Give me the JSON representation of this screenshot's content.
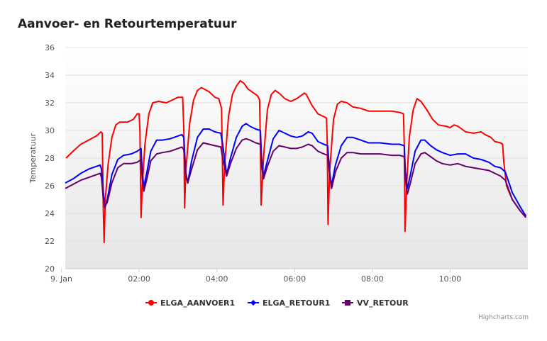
{
  "chart_data": {
    "type": "line",
    "title": "Aanvoer- en Retourtemperatuur",
    "ylabel": "Temperatuur",
    "xlabel": "",
    "ylim": [
      20,
      36
    ],
    "yticks": [
      20,
      22,
      24,
      26,
      28,
      30,
      32,
      34,
      36
    ],
    "xlim": [
      0.1,
      12.0
    ],
    "xticks": [
      {
        "value": 0,
        "label": "9. Jan"
      },
      {
        "value": 2,
        "label": "02:00"
      },
      {
        "value": 4,
        "label": "04:00"
      },
      {
        "value": 6,
        "label": "06:00"
      },
      {
        "value": 8,
        "label": "08:00"
      },
      {
        "value": 10,
        "label": "10:00"
      }
    ],
    "grid": true,
    "legend_position": "bottom-center",
    "series": [
      {
        "name": "ELGA_AANVOER1",
        "color": "#ff0000",
        "points": [
          [
            0.12,
            28.0
          ],
          [
            0.3,
            28.5
          ],
          [
            0.5,
            29.0
          ],
          [
            0.7,
            29.3
          ],
          [
            0.9,
            29.6
          ],
          [
            1.02,
            29.9
          ],
          [
            1.05,
            29.8
          ],
          [
            1.08,
            24.0
          ],
          [
            1.1,
            21.9
          ],
          [
            1.13,
            25.0
          ],
          [
            1.2,
            27.5
          ],
          [
            1.3,
            29.5
          ],
          [
            1.4,
            30.4
          ],
          [
            1.5,
            30.6
          ],
          [
            1.7,
            30.6
          ],
          [
            1.85,
            30.8
          ],
          [
            1.95,
            31.2
          ],
          [
            2.0,
            31.2
          ],
          [
            2.02,
            30.0
          ],
          [
            2.05,
            23.7
          ],
          [
            2.08,
            26.0
          ],
          [
            2.15,
            29.0
          ],
          [
            2.25,
            31.2
          ],
          [
            2.35,
            32.0
          ],
          [
            2.5,
            32.1
          ],
          [
            2.7,
            32.0
          ],
          [
            2.85,
            32.2
          ],
          [
            3.0,
            32.4
          ],
          [
            3.12,
            32.4
          ],
          [
            3.15,
            30.0
          ],
          [
            3.17,
            24.4
          ],
          [
            3.2,
            27.0
          ],
          [
            3.3,
            30.5
          ],
          [
            3.4,
            32.2
          ],
          [
            3.5,
            32.9
          ],
          [
            3.6,
            33.1
          ],
          [
            3.8,
            32.8
          ],
          [
            3.95,
            32.4
          ],
          [
            4.05,
            32.3
          ],
          [
            4.12,
            31.6
          ],
          [
            4.14,
            28.0
          ],
          [
            4.16,
            24.6
          ],
          [
            4.2,
            27.5
          ],
          [
            4.3,
            31.0
          ],
          [
            4.4,
            32.6
          ],
          [
            4.5,
            33.2
          ],
          [
            4.6,
            33.6
          ],
          [
            4.7,
            33.4
          ],
          [
            4.8,
            33.0
          ],
          [
            4.95,
            32.7
          ],
          [
            5.05,
            32.5
          ],
          [
            5.1,
            32.2
          ],
          [
            5.12,
            29.0
          ],
          [
            5.14,
            24.6
          ],
          [
            5.2,
            28.0
          ],
          [
            5.3,
            31.5
          ],
          [
            5.4,
            32.6
          ],
          [
            5.5,
            32.9
          ],
          [
            5.6,
            32.7
          ],
          [
            5.75,
            32.3
          ],
          [
            5.9,
            32.1
          ],
          [
            6.05,
            32.3
          ],
          [
            6.15,
            32.5
          ],
          [
            6.25,
            32.7
          ],
          [
            6.3,
            32.6
          ],
          [
            6.45,
            31.8
          ],
          [
            6.6,
            31.2
          ],
          [
            6.75,
            31.0
          ],
          [
            6.82,
            30.9
          ],
          [
            6.84,
            29.0
          ],
          [
            6.86,
            23.2
          ],
          [
            6.9,
            27.0
          ],
          [
            7.0,
            30.8
          ],
          [
            7.1,
            31.9
          ],
          [
            7.2,
            32.1
          ],
          [
            7.35,
            32.0
          ],
          [
            7.5,
            31.7
          ],
          [
            7.7,
            31.6
          ],
          [
            7.9,
            31.4
          ],
          [
            8.2,
            31.4
          ],
          [
            8.5,
            31.4
          ],
          [
            8.7,
            31.3
          ],
          [
            8.8,
            31.2
          ],
          [
            8.82,
            29.0
          ],
          [
            8.84,
            22.7
          ],
          [
            8.88,
            26.0
          ],
          [
            8.95,
            29.5
          ],
          [
            9.05,
            31.5
          ],
          [
            9.15,
            32.3
          ],
          [
            9.25,
            32.1
          ],
          [
            9.4,
            31.5
          ],
          [
            9.55,
            30.8
          ],
          [
            9.7,
            30.4
          ],
          [
            9.9,
            30.3
          ],
          [
            10.0,
            30.2
          ],
          [
            10.1,
            30.4
          ],
          [
            10.2,
            30.3
          ],
          [
            10.4,
            29.9
          ],
          [
            10.6,
            29.8
          ],
          [
            10.8,
            29.9
          ],
          [
            10.9,
            29.7
          ],
          [
            11.05,
            29.5
          ],
          [
            11.15,
            29.2
          ],
          [
            11.3,
            29.1
          ],
          [
            11.35,
            29.0
          ],
          [
            11.38,
            27.8
          ],
          [
            11.45,
            26.0
          ],
          [
            11.6,
            25.0
          ],
          [
            11.8,
            24.2
          ],
          [
            11.95,
            23.7
          ]
        ]
      },
      {
        "name": "ELGA_RETOUR1",
        "color": "#0000ff",
        "points": [
          [
            0.1,
            26.2
          ],
          [
            0.3,
            26.5
          ],
          [
            0.5,
            26.9
          ],
          [
            0.7,
            27.2
          ],
          [
            0.9,
            27.4
          ],
          [
            1.0,
            27.5
          ],
          [
            1.03,
            27.2
          ],
          [
            1.08,
            25.5
          ],
          [
            1.12,
            24.4
          ],
          [
            1.18,
            25.0
          ],
          [
            1.3,
            26.8
          ],
          [
            1.45,
            27.9
          ],
          [
            1.6,
            28.2
          ],
          [
            1.8,
            28.3
          ],
          [
            1.95,
            28.5
          ],
          [
            2.05,
            28.7
          ],
          [
            2.08,
            27.0
          ],
          [
            2.12,
            25.9
          ],
          [
            2.2,
            27.0
          ],
          [
            2.3,
            28.5
          ],
          [
            2.45,
            29.3
          ],
          [
            2.6,
            29.3
          ],
          [
            2.8,
            29.4
          ],
          [
            3.0,
            29.6
          ],
          [
            3.1,
            29.7
          ],
          [
            3.15,
            29.5
          ],
          [
            3.2,
            27.0
          ],
          [
            3.25,
            26.2
          ],
          [
            3.35,
            27.8
          ],
          [
            3.5,
            29.5
          ],
          [
            3.65,
            30.1
          ],
          [
            3.8,
            30.1
          ],
          [
            3.95,
            29.9
          ],
          [
            4.1,
            29.8
          ],
          [
            4.15,
            29.0
          ],
          [
            4.25,
            26.8
          ],
          [
            4.35,
            28.0
          ],
          [
            4.5,
            29.5
          ],
          [
            4.65,
            30.3
          ],
          [
            4.75,
            30.5
          ],
          [
            4.85,
            30.3
          ],
          [
            5.0,
            30.1
          ],
          [
            5.12,
            30.0
          ],
          [
            5.15,
            28.0
          ],
          [
            5.2,
            26.7
          ],
          [
            5.3,
            27.8
          ],
          [
            5.45,
            29.4
          ],
          [
            5.6,
            30.0
          ],
          [
            5.75,
            29.8
          ],
          [
            5.9,
            29.6
          ],
          [
            6.05,
            29.5
          ],
          [
            6.2,
            29.6
          ],
          [
            6.35,
            29.9
          ],
          [
            6.45,
            29.8
          ],
          [
            6.6,
            29.2
          ],
          [
            6.75,
            29.0
          ],
          [
            6.85,
            28.9
          ],
          [
            6.9,
            27.0
          ],
          [
            6.95,
            26.0
          ],
          [
            7.05,
            27.5
          ],
          [
            7.2,
            28.9
          ],
          [
            7.35,
            29.5
          ],
          [
            7.5,
            29.5
          ],
          [
            7.7,
            29.3
          ],
          [
            7.9,
            29.1
          ],
          [
            8.2,
            29.1
          ],
          [
            8.5,
            29.0
          ],
          [
            8.7,
            29.0
          ],
          [
            8.82,
            28.9
          ],
          [
            8.85,
            27.0
          ],
          [
            8.9,
            25.8
          ],
          [
            8.98,
            26.8
          ],
          [
            9.1,
            28.5
          ],
          [
            9.25,
            29.3
          ],
          [
            9.35,
            29.3
          ],
          [
            9.5,
            28.9
          ],
          [
            9.65,
            28.6
          ],
          [
            9.8,
            28.4
          ],
          [
            10.0,
            28.2
          ],
          [
            10.2,
            28.3
          ],
          [
            10.4,
            28.3
          ],
          [
            10.6,
            28.0
          ],
          [
            10.8,
            27.9
          ],
          [
            11.0,
            27.7
          ],
          [
            11.15,
            27.4
          ],
          [
            11.3,
            27.3
          ],
          [
            11.42,
            27.0
          ],
          [
            11.6,
            25.5
          ],
          [
            11.8,
            24.5
          ],
          [
            11.95,
            23.8
          ]
        ]
      },
      {
        "name": "VV_RETOUR",
        "color": "#660066",
        "points": [
          [
            0.1,
            25.8
          ],
          [
            0.3,
            26.1
          ],
          [
            0.5,
            26.4
          ],
          [
            0.7,
            26.6
          ],
          [
            0.9,
            26.8
          ],
          [
            1.0,
            26.9
          ],
          [
            1.03,
            26.6
          ],
          [
            1.08,
            25.0
          ],
          [
            1.12,
            24.5
          ],
          [
            1.18,
            24.8
          ],
          [
            1.3,
            26.2
          ],
          [
            1.45,
            27.3
          ],
          [
            1.6,
            27.6
          ],
          [
            1.8,
            27.6
          ],
          [
            1.95,
            27.7
          ],
          [
            2.05,
            27.9
          ],
          [
            2.08,
            26.5
          ],
          [
            2.12,
            25.6
          ],
          [
            2.2,
            26.5
          ],
          [
            2.3,
            27.8
          ],
          [
            2.45,
            28.3
          ],
          [
            2.6,
            28.4
          ],
          [
            2.8,
            28.5
          ],
          [
            3.0,
            28.7
          ],
          [
            3.1,
            28.8
          ],
          [
            3.15,
            28.6
          ],
          [
            3.2,
            26.8
          ],
          [
            3.25,
            26.2
          ],
          [
            3.35,
            27.2
          ],
          [
            3.5,
            28.6
          ],
          [
            3.65,
            29.1
          ],
          [
            3.8,
            29.0
          ],
          [
            3.95,
            28.9
          ],
          [
            4.1,
            28.8
          ],
          [
            4.15,
            28.0
          ],
          [
            4.25,
            26.7
          ],
          [
            4.35,
            27.6
          ],
          [
            4.5,
            28.7
          ],
          [
            4.65,
            29.3
          ],
          [
            4.75,
            29.4
          ],
          [
            4.85,
            29.3
          ],
          [
            5.0,
            29.1
          ],
          [
            5.12,
            29.0
          ],
          [
            5.15,
            27.5
          ],
          [
            5.2,
            26.5
          ],
          [
            5.3,
            27.4
          ],
          [
            5.45,
            28.5
          ],
          [
            5.6,
            28.9
          ],
          [
            5.75,
            28.8
          ],
          [
            5.9,
            28.7
          ],
          [
            6.05,
            28.7
          ],
          [
            6.2,
            28.8
          ],
          [
            6.35,
            29.0
          ],
          [
            6.45,
            28.9
          ],
          [
            6.6,
            28.5
          ],
          [
            6.75,
            28.3
          ],
          [
            6.85,
            28.2
          ],
          [
            6.9,
            26.8
          ],
          [
            6.95,
            25.8
          ],
          [
            7.05,
            27.0
          ],
          [
            7.2,
            28.0
          ],
          [
            7.35,
            28.4
          ],
          [
            7.5,
            28.4
          ],
          [
            7.7,
            28.3
          ],
          [
            7.9,
            28.3
          ],
          [
            8.2,
            28.3
          ],
          [
            8.5,
            28.2
          ],
          [
            8.7,
            28.2
          ],
          [
            8.82,
            28.1
          ],
          [
            8.85,
            26.5
          ],
          [
            8.9,
            25.4
          ],
          [
            8.98,
            26.2
          ],
          [
            9.1,
            27.6
          ],
          [
            9.25,
            28.3
          ],
          [
            9.35,
            28.4
          ],
          [
            9.5,
            28.1
          ],
          [
            9.65,
            27.8
          ],
          [
            9.8,
            27.6
          ],
          [
            10.0,
            27.5
          ],
          [
            10.2,
            27.6
          ],
          [
            10.4,
            27.4
          ],
          [
            10.6,
            27.3
          ],
          [
            10.8,
            27.2
          ],
          [
            11.0,
            27.1
          ],
          [
            11.15,
            26.9
          ],
          [
            11.3,
            26.7
          ],
          [
            11.42,
            26.4
          ],
          [
            11.6,
            25.0
          ],
          [
            11.8,
            24.2
          ],
          [
            11.95,
            23.7
          ]
        ]
      }
    ]
  },
  "credits": "Highcharts.com",
  "menu_icon": "hamburger-menu-icon"
}
